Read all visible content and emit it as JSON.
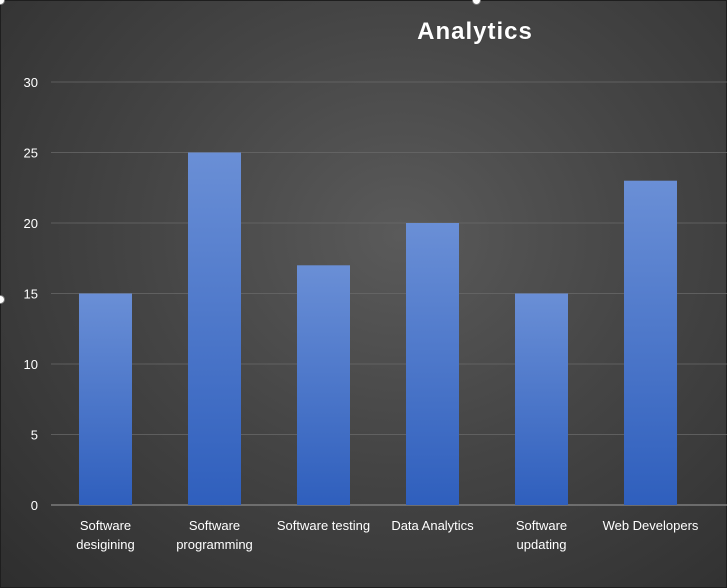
{
  "chart_data": {
    "type": "bar",
    "title": "Analytics",
    "categories": [
      [
        "Software",
        "desigining"
      ],
      [
        "Software",
        "programming"
      ],
      [
        "Software testing"
      ],
      [
        "Data Analytics"
      ],
      [
        "Software",
        "updating"
      ],
      [
        "Web Developers"
      ]
    ],
    "values": [
      15,
      25,
      17,
      20,
      15,
      23
    ],
    "ylim": [
      0,
      30
    ],
    "yticks": [
      "0",
      "5",
      "10",
      "15",
      "20",
      "25",
      "30"
    ],
    "grid": true,
    "legend": "none"
  },
  "colors": {
    "bar_top": "#6a8fd6",
    "bar_bottom": "#2f5fbd",
    "grid": "#6a6a6a",
    "axis": "#8a8a8a",
    "text": "#ffffff"
  }
}
